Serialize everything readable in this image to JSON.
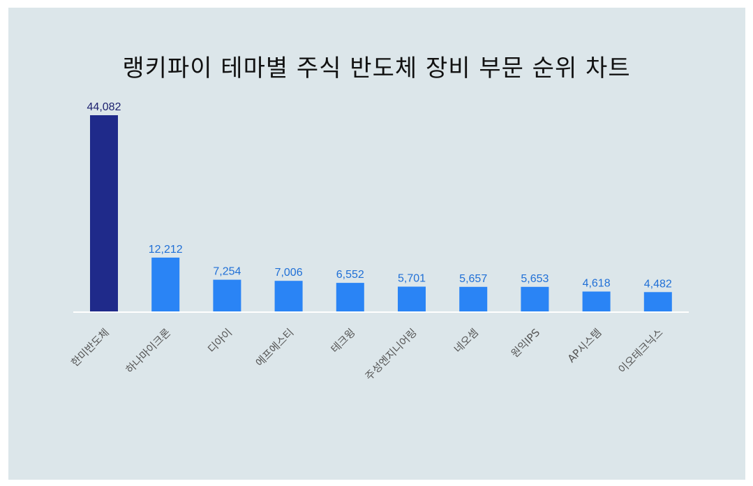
{
  "chart_data": {
    "type": "bar",
    "title": "랭키파이 테마별 주식 반도체 장비 부문 순위 차트",
    "categories": [
      "한미반도체",
      "하나마이크론",
      "디아이",
      "에프에스티",
      "테크윙",
      "주성엔지니어링",
      "네오셈",
      "원익IPS",
      "AP시스템",
      "이오테크닉스"
    ],
    "values": [
      44082,
      12212,
      7254,
      7006,
      6552,
      5701,
      5657,
      5653,
      4618,
      4482
    ],
    "value_labels": [
      "44,082",
      "12,212",
      "7,254",
      "7,006",
      "6,552",
      "5,701",
      "5,657",
      "5,653",
      "4,618",
      "4,482"
    ],
    "xlabel": "",
    "ylabel": "",
    "ylim": [
      0,
      44082
    ],
    "grid": false,
    "legend": "none",
    "colors": {
      "highlight_bar": "#1f2a8a",
      "bar": "#2a84f5",
      "highlight_label": "#1a1f6e",
      "label": "#1f6fd6",
      "baseline": "#ffffff",
      "background": "#dce6ea"
    }
  }
}
